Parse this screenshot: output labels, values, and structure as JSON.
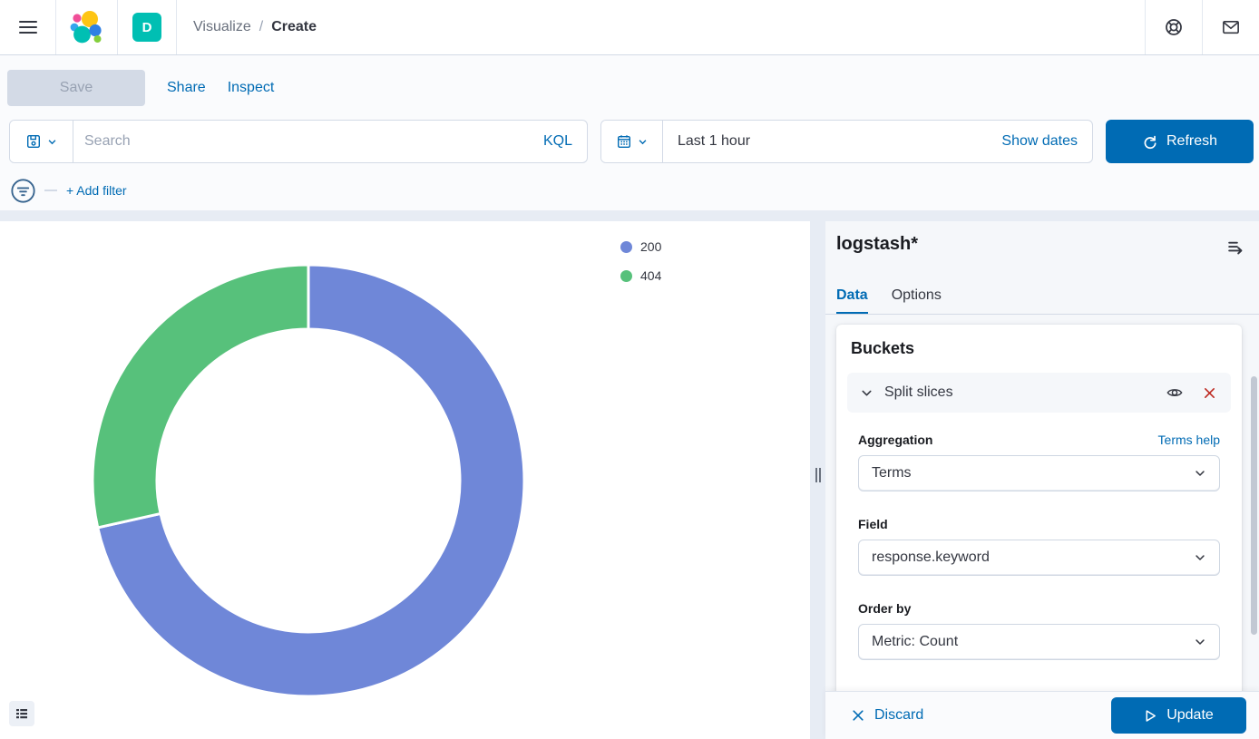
{
  "header": {
    "space_badge": "D",
    "breadcrumb": {
      "section": "Visualize",
      "separator": "/",
      "current": "Create"
    }
  },
  "toolbar": {
    "save_label": "Save",
    "share_label": "Share",
    "inspect_label": "Inspect"
  },
  "query_bar": {
    "search_placeholder": "Search",
    "language_label": "KQL",
    "time_range": "Last 1 hour",
    "show_dates_label": "Show dates",
    "refresh_label": "Refresh"
  },
  "filter_bar": {
    "add_filter_label": "+ Add filter"
  },
  "chart_data": {
    "type": "pie",
    "subtype": "donut",
    "categories": [
      "200",
      "404"
    ],
    "values": [
      71.5,
      28.5
    ],
    "values_unit": "percent_of_total_estimated_from_arc_angles",
    "colors": [
      "#6F87D8",
      "#57C17B"
    ],
    "legend_position": "top-right",
    "start_angle_deg": 0,
    "clockwise": true,
    "inner_radius_ratio": 0.7,
    "slice_border_color": "#FFFFFF"
  },
  "side_panel": {
    "index_pattern": "logstash*",
    "tabs": [
      {
        "label": "Data",
        "active": true
      },
      {
        "label": "Options",
        "active": false
      }
    ],
    "buckets": {
      "title": "Buckets",
      "accordion_label": "Split slices",
      "aggregation_label": "Aggregation",
      "aggregation_value": "Terms",
      "aggregation_help": "Terms help",
      "field_label": "Field",
      "field_value": "response.keyword",
      "order_by_label": "Order by",
      "order_by_value": "Metric: Count"
    },
    "footer": {
      "discard_label": "Discard",
      "update_label": "Update"
    }
  },
  "colors": {
    "primary": "#006BB4",
    "text": "#343741",
    "subdued": "#69707D",
    "placeholder": "#98A2B3",
    "border": "#D3DAE6",
    "panel_bg": "#F5F7FA",
    "page_bg": "#FAFBFD",
    "band": "#E7ECF4",
    "danger": "#BD271E",
    "badge": "#00BFB3"
  }
}
